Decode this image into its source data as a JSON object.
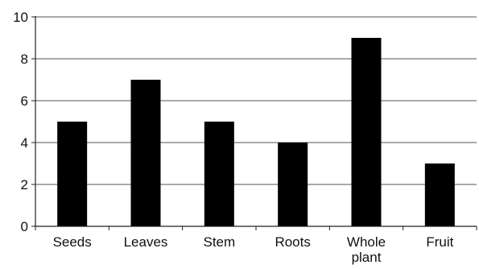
{
  "chart_data": {
    "type": "bar",
    "categories": [
      "Seeds",
      "Leaves",
      "Stem",
      "Roots",
      "Whole\nplant",
      "Fruit"
    ],
    "values": [
      5,
      7,
      5,
      4,
      9,
      3
    ],
    "title": "",
    "xlabel": "",
    "ylabel": "",
    "ylim": [
      0,
      10
    ],
    "yticks": [
      "0",
      "2",
      "4",
      "6",
      "8",
      "10"
    ],
    "grid": "horizontal",
    "bar_color": "#000000"
  }
}
